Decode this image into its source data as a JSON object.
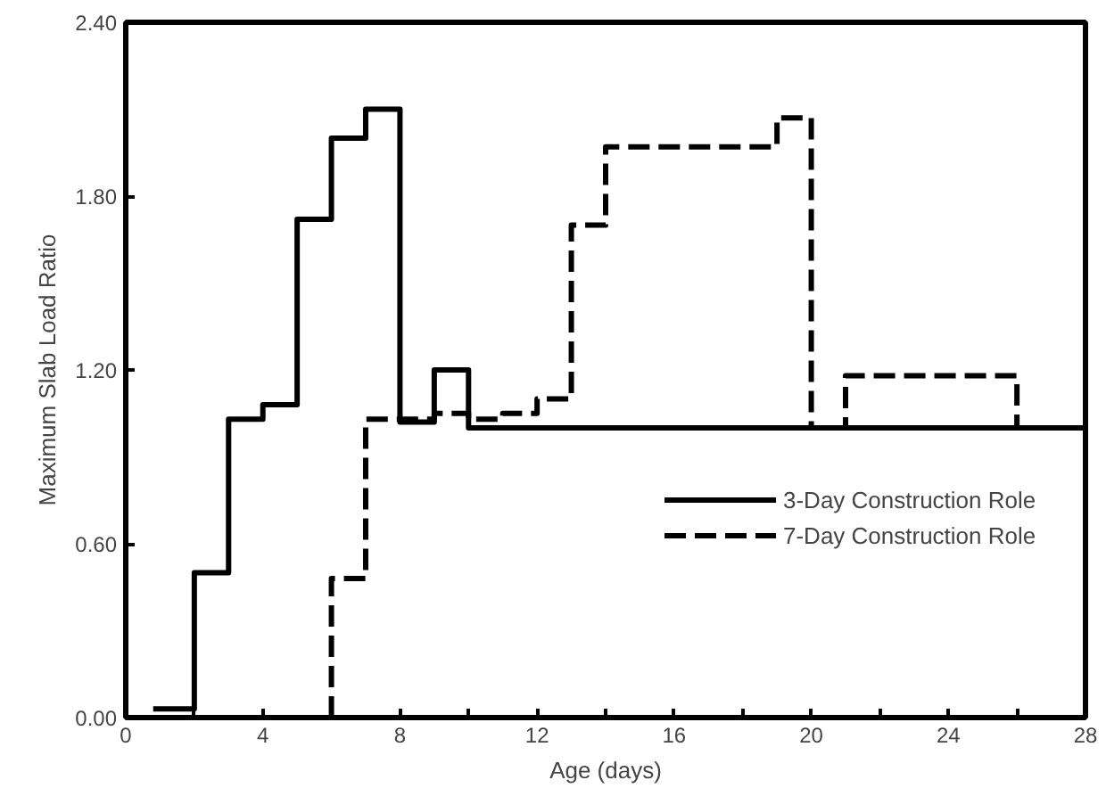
{
  "chart_data": {
    "type": "step",
    "xlabel": "Age (days)",
    "ylabel": "Maximum Slab Load Ratio",
    "series": [
      {
        "name": "3-Day Construction Role",
        "color": "#000000",
        "line_style": "solid",
        "x": [
          0.8,
          2,
          3,
          4,
          5,
          6,
          7,
          8,
          9,
          10,
          28
        ],
        "values": [
          0.03,
          0.5,
          1.03,
          1.08,
          1.72,
          2.0,
          2.1,
          1.02,
          1.2,
          1.0,
          1.0
        ]
      },
      {
        "name": "7-Day Construction Role",
        "color": "#000000",
        "line_style": "dashed",
        "x": [
          6,
          6,
          7,
          8,
          9,
          10,
          11,
          12,
          13,
          14,
          19,
          20,
          21,
          26,
          28
        ],
        "values": [
          0.0,
          0.48,
          1.03,
          1.03,
          1.05,
          1.03,
          1.05,
          1.1,
          1.7,
          1.97,
          2.07,
          1.0,
          1.18,
          1.0,
          1.0
        ]
      }
    ],
    "xlim": [
      0,
      28
    ],
    "ylim": [
      0,
      2.4
    ],
    "xticks": [
      0,
      {
        "value": 2,
        "label": null
      },
      4,
      {
        "value": 6,
        "label": null
      },
      8,
      {
        "value": 10,
        "label": null
      },
      12,
      {
        "value": 14,
        "label": null
      },
      16,
      {
        "value": 18,
        "label": null
      },
      20,
      {
        "value": 22,
        "label": null
      },
      24,
      {
        "value": 26,
        "label": null
      },
      28
    ],
    "yticks": [
      {
        "value": 0,
        "label": "0.00"
      },
      {
        "value": 0.6,
        "label": "0.60"
      },
      {
        "value": 1.2,
        "label": "1.20"
      },
      {
        "value": 1.8,
        "label": "1.80"
      },
      {
        "value": 2.4,
        "label": "2.40"
      }
    ],
    "grid": false,
    "legend": "right"
  }
}
